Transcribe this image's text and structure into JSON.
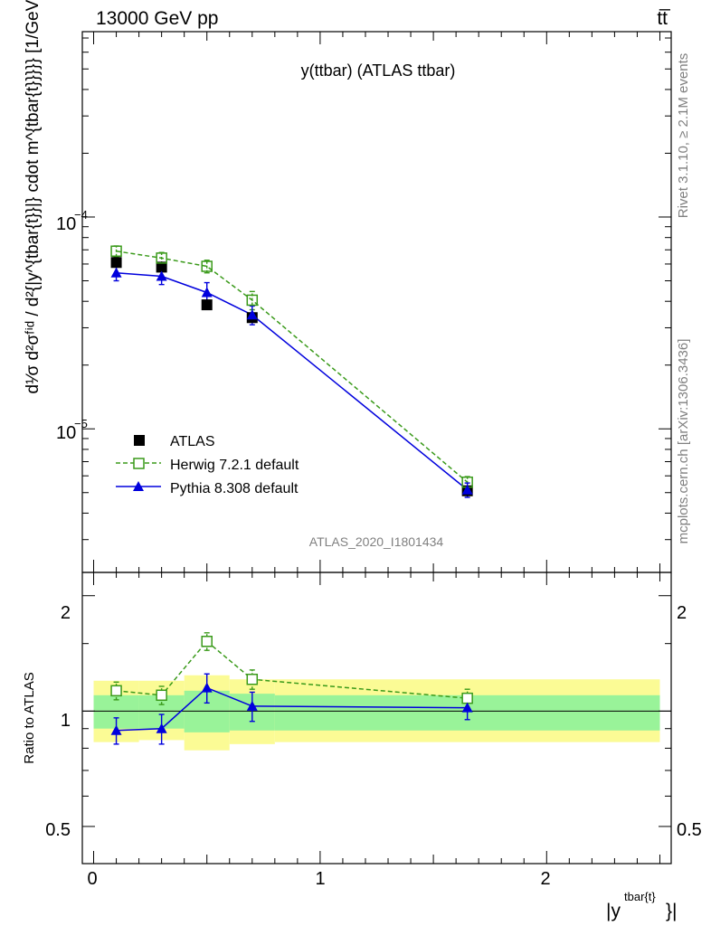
{
  "header": {
    "left": "13000 GeV pp",
    "right": "tt̅"
  },
  "side": {
    "rivet": "Rivet 3.1.10, ≥ 2.1M events",
    "mcplots": "mcplots.cern.ch [arXiv:1306.3436]"
  },
  "main": {
    "title": "y(ttbar) (ATLAS ttbar)",
    "watermark": "ATLAS_2020_I1801434",
    "ylabel": "d¹⁄σ d²σᶠⁱᵈ / d²{|y^{tbar{t}}|} cdot m^{tbar{t}}}}} [1/GeV]",
    "ytick_1e4": "10",
    "ytick_1e4_exp": "−4",
    "ytick_1e5": "10",
    "ytick_1e5_exp": "−5"
  },
  "legend": [
    {
      "label": "ATLAS",
      "color": "#000000",
      "marker": "square"
    },
    {
      "label": "Herwig 7.2.1 default",
      "color": "#3a9a1a",
      "marker": "open-square",
      "dash": true
    },
    {
      "label": "Pythia 8.308 default",
      "color": "#0000dd",
      "marker": "triangle"
    }
  ],
  "ratio": {
    "ylabel": "Ratio to ATLAS",
    "ticks": [
      "2",
      "1",
      "0.5"
    ]
  },
  "xaxis": {
    "label": "|y",
    "label_sup": "tbar{t}",
    "label_end": "}|",
    "ticks": [
      "0",
      "1",
      "2"
    ]
  },
  "chart_data": {
    "type": "line",
    "x": [
      0.1,
      0.3,
      0.5,
      0.7,
      1.65
    ],
    "xlim": [
      -0.05,
      2.55
    ],
    "ylim": [
      2.1e-06,
      0.00075
    ],
    "yscale": "log",
    "ratio_ylim": [
      0.4,
      2.3
    ],
    "ratio_yscale": "log",
    "series": [
      {
        "name": "ATLAS",
        "values": [
          6.1e-05,
          5.8e-05,
          3.85e-05,
          3.35e-05,
          5.1e-06
        ],
        "err": [
          1e-06,
          1e-06,
          1e-06,
          1e-06,
          1e-07
        ],
        "color": "#000000"
      },
      {
        "name": "Herwig 7.2.1 default",
        "values": [
          6.9e-05,
          6.4e-05,
          5.85e-05,
          4.05e-05,
          5.6e-06
        ],
        "err": [
          4e-06,
          4e-06,
          4e-06,
          4e-06,
          3.5e-07
        ],
        "color": "#3a9a1a",
        "ratio": [
          1.13,
          1.1,
          1.52,
          1.21,
          1.08
        ],
        "ratio_err": [
          0.06,
          0.06,
          0.08,
          0.07,
          0.06
        ]
      },
      {
        "name": "Pythia 8.308 default",
        "values": [
          5.45e-05,
          5.25e-05,
          4.4e-05,
          3.45e-05,
          5.15e-06
        ],
        "err": [
          4.5e-06,
          4.5e-06,
          5e-06,
          3.5e-06,
          4e-07
        ],
        "color": "#0000dd",
        "ratio": [
          0.89,
          0.9,
          1.15,
          1.03,
          1.02
        ],
        "ratio_err": [
          0.07,
          0.08,
          0.1,
          0.09,
          0.07
        ]
      }
    ],
    "bands": {
      "bins": [
        [
          0.0,
          0.2
        ],
        [
          0.2,
          0.4
        ],
        [
          0.4,
          0.6
        ],
        [
          0.6,
          0.8
        ],
        [
          0.8,
          2.5
        ]
      ],
      "stat_lo": [
        0.9,
        0.9,
        0.88,
        0.89,
        0.89
      ],
      "stat_hi": [
        1.1,
        1.1,
        1.13,
        1.11,
        1.1
      ],
      "tot_lo": [
        0.83,
        0.84,
        0.79,
        0.82,
        0.83
      ],
      "tot_hi": [
        1.2,
        1.2,
        1.24,
        1.21,
        1.21
      ]
    },
    "colors": {
      "stat": "#99f399",
      "tot": "#fbfb95"
    }
  }
}
